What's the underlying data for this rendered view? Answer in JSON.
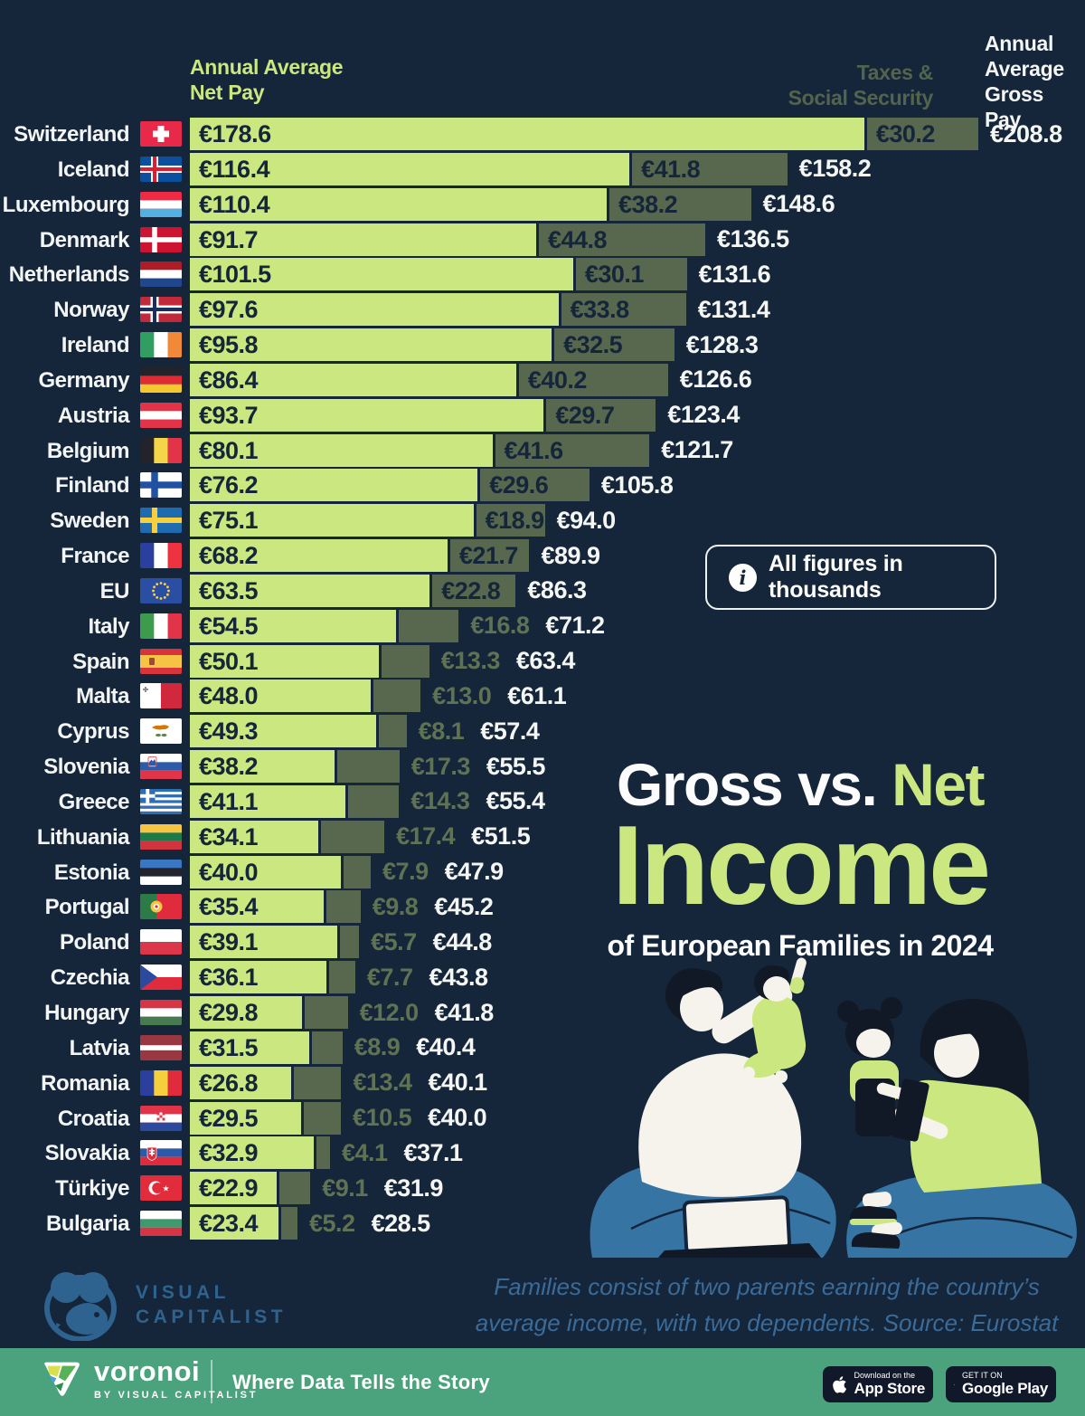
{
  "palette": {
    "background": "#16263a",
    "net_bar": "#cbe77f",
    "tax_bar": "#57684f",
    "navy_text": "#16263a",
    "tax_muted_text": "#5f7253",
    "white_text": "#f4f6f3",
    "taxes_header": "#52644d",
    "footer_green": "#4aa37c",
    "source_blue": "#3a6b99",
    "vc_logo_blue": "#2e6390"
  },
  "headers": {
    "net": "Annual Average\nNet Pay",
    "taxes": "Taxes &\nSocial Security",
    "gross": "Annual\nAverage\nGross Pay"
  },
  "note": {
    "icon": "i",
    "text": "All figures in thousands"
  },
  "title": {
    "part1": "Gross vs. ",
    "part1_accent": "Net",
    "part2": "Income",
    "subtitle": "of European Families in 2024"
  },
  "chart_data": {
    "type": "bar",
    "orientation": "horizontal",
    "stacked": true,
    "unit": "EUR thousands",
    "currency_prefix": "€",
    "series": [
      "Annual Average Net Pay",
      "Taxes & Social Security"
    ],
    "xlim": [
      0,
      208.8
    ],
    "rows": [
      {
        "country": "Switzerland",
        "flag": "ch",
        "net": 178.6,
        "taxes": 30.2,
        "gross": 208.8
      },
      {
        "country": "Iceland",
        "flag": "is",
        "net": 116.4,
        "taxes": 41.8,
        "gross": 158.2
      },
      {
        "country": "Luxembourg",
        "flag": "lu",
        "net": 110.4,
        "taxes": 38.2,
        "gross": 148.6
      },
      {
        "country": "Denmark",
        "flag": "dk",
        "net": 91.7,
        "taxes": 44.8,
        "gross": 136.5
      },
      {
        "country": "Netherlands",
        "flag": "nl",
        "net": 101.5,
        "taxes": 30.1,
        "gross": 131.6
      },
      {
        "country": "Norway",
        "flag": "no",
        "net": 97.6,
        "taxes": 33.8,
        "gross": 131.4
      },
      {
        "country": "Ireland",
        "flag": "ie",
        "net": 95.8,
        "taxes": 32.5,
        "gross": 128.3
      },
      {
        "country": "Germany",
        "flag": "de",
        "net": 86.4,
        "taxes": 40.2,
        "gross": 126.6
      },
      {
        "country": "Austria",
        "flag": "at",
        "net": 93.7,
        "taxes": 29.7,
        "gross": 123.4
      },
      {
        "country": "Belgium",
        "flag": "be",
        "net": 80.1,
        "taxes": 41.6,
        "gross": 121.7
      },
      {
        "country": "Finland",
        "flag": "fi",
        "net": 76.2,
        "taxes": 29.6,
        "gross": 105.8
      },
      {
        "country": "Sweden",
        "flag": "se",
        "net": 75.1,
        "taxes": 18.9,
        "gross": 94.0
      },
      {
        "country": "France",
        "flag": "fr",
        "net": 68.2,
        "taxes": 21.7,
        "gross": 89.9
      },
      {
        "country": "EU",
        "flag": "eu",
        "net": 63.5,
        "taxes": 22.8,
        "gross": 86.3
      },
      {
        "country": "Italy",
        "flag": "it",
        "net": 54.5,
        "taxes": 16.8,
        "gross": 71.2
      },
      {
        "country": "Spain",
        "flag": "es",
        "net": 50.1,
        "taxes": 13.3,
        "gross": 63.4
      },
      {
        "country": "Malta",
        "flag": "mt",
        "net": 48.0,
        "taxes": 13.0,
        "gross": 61.1
      },
      {
        "country": "Cyprus",
        "flag": "cy",
        "net": 49.3,
        "taxes": 8.1,
        "gross": 57.4
      },
      {
        "country": "Slovenia",
        "flag": "si",
        "net": 38.2,
        "taxes": 17.3,
        "gross": 55.5
      },
      {
        "country": "Greece",
        "flag": "gr",
        "net": 41.1,
        "taxes": 14.3,
        "gross": 55.4
      },
      {
        "country": "Lithuania",
        "flag": "lt",
        "net": 34.1,
        "taxes": 17.4,
        "gross": 51.5
      },
      {
        "country": "Estonia",
        "flag": "ee",
        "net": 40.0,
        "taxes": 7.9,
        "gross": 47.9
      },
      {
        "country": "Portugal",
        "flag": "pt",
        "net": 35.4,
        "taxes": 9.8,
        "gross": 45.2
      },
      {
        "country": "Poland",
        "flag": "pl",
        "net": 39.1,
        "taxes": 5.7,
        "gross": 44.8
      },
      {
        "country": "Czechia",
        "flag": "cz",
        "net": 36.1,
        "taxes": 7.7,
        "gross": 43.8
      },
      {
        "country": "Hungary",
        "flag": "hu",
        "net": 29.8,
        "taxes": 12.0,
        "gross": 41.8
      },
      {
        "country": "Latvia",
        "flag": "lv",
        "net": 31.5,
        "taxes": 8.9,
        "gross": 40.4
      },
      {
        "country": "Romania",
        "flag": "ro",
        "net": 26.8,
        "taxes": 13.4,
        "gross": 40.1
      },
      {
        "country": "Croatia",
        "flag": "hr",
        "net": 29.5,
        "taxes": 10.5,
        "gross": 40.0
      },
      {
        "country": "Slovakia",
        "flag": "sk",
        "net": 32.9,
        "taxes": 4.1,
        "gross": 37.1
      },
      {
        "country": "Türkiye",
        "flag": "tr",
        "net": 22.9,
        "taxes": 9.1,
        "gross": 31.9
      },
      {
        "country": "Bulgaria",
        "flag": "bg",
        "net": 23.4,
        "taxes": 5.2,
        "gross": 28.5
      }
    ]
  },
  "footnote": "Families consist of two parents earning the country’s\naverage income, with two dependents. Source: Eurostat",
  "vc_logo": {
    "line1": "VISUAL",
    "line2": "CAPITALIST"
  },
  "footer": {
    "brand": "voronoi",
    "brand_sub": "BY VISUAL CAPITALIST",
    "tagline": "Where Data Tells the Story",
    "appstore_top": "Download on the",
    "appstore_bottom": "App Store",
    "googleplay_top": "GET IT ON",
    "googleplay_bottom": "Google Play"
  }
}
